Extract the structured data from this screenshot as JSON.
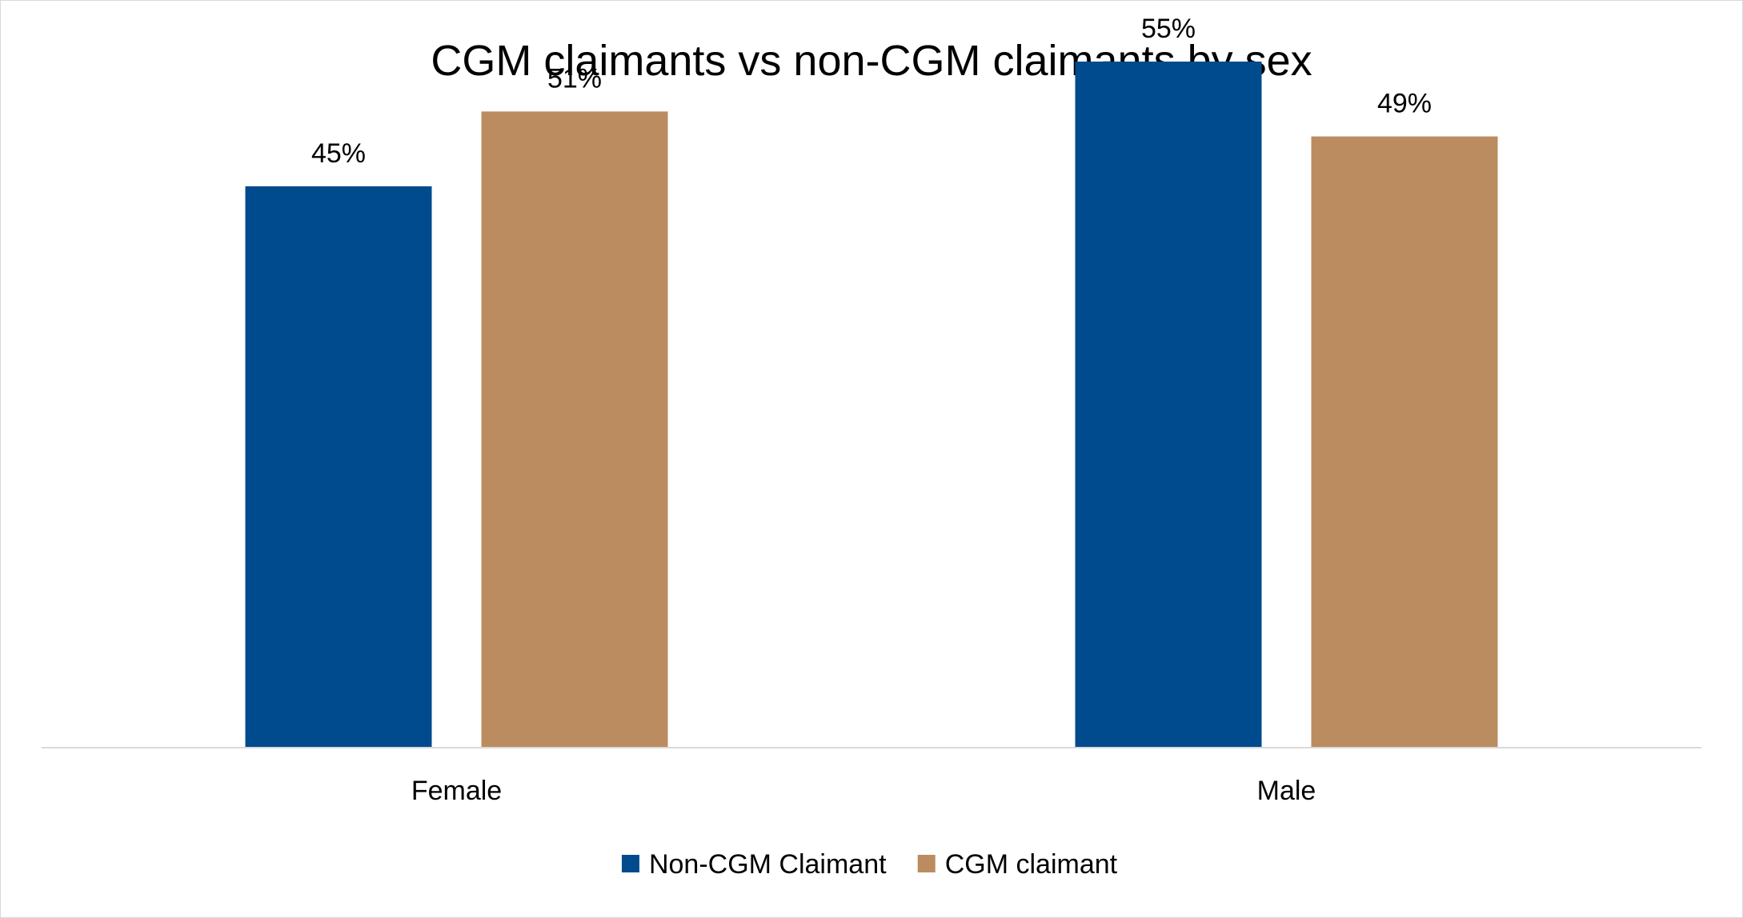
{
  "chart_data": {
    "type": "bar",
    "title": "CGM claimants vs non-CGM claimants by sex",
    "categories": [
      "Female",
      "Male"
    ],
    "series": [
      {
        "name": "Non-CGM Claimant",
        "values": [
          45,
          55
        ],
        "labels": [
          "45%",
          "55%"
        ],
        "color": "#004b8d"
      },
      {
        "name": "CGM claimant",
        "values": [
          51,
          49
        ],
        "labels": [
          "51%",
          "49%"
        ],
        "color": "#bb8c5f"
      }
    ],
    "ylim": [
      0,
      60
    ],
    "unit": "%",
    "grid": false,
    "legend_position": "bottom"
  }
}
